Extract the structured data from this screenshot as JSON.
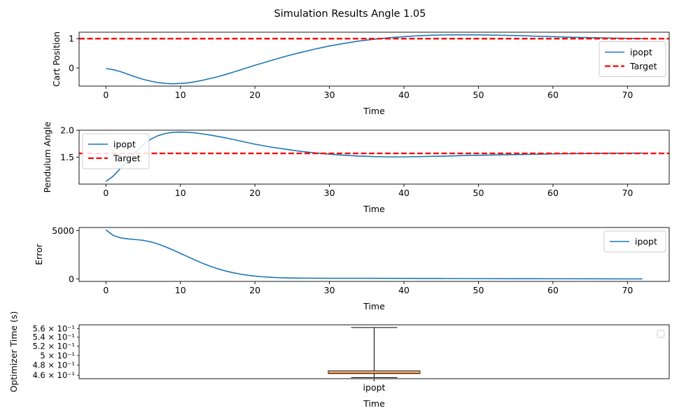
{
  "figure": {
    "title": "Simulation Results Angle 1.05"
  },
  "chart_data": [
    {
      "type": "line",
      "xlabel": "Time",
      "ylabel": "Cart Position",
      "xlim": [
        -3.6,
        75.6
      ],
      "ylim": [
        -0.62,
        1.22
      ],
      "xticks": [
        0,
        10,
        20,
        30,
        40,
        50,
        60,
        70
      ],
      "yticks": [
        0,
        1
      ],
      "grid": false,
      "legend_position": "right",
      "series": [
        {
          "name": "ipopt",
          "color": "#1f77b4",
          "style": "solid",
          "x": [
            0,
            1,
            2,
            3,
            4,
            5,
            6,
            7,
            8,
            9,
            10,
            11,
            12,
            13,
            14,
            15,
            16,
            17,
            18,
            19,
            20,
            22,
            24,
            26,
            28,
            30,
            32,
            34,
            36,
            38,
            40,
            42,
            44,
            46,
            48,
            50,
            52,
            54,
            56,
            58,
            60,
            62,
            64,
            66,
            68,
            70,
            72
          ],
          "y": [
            -0.02,
            -0.06,
            -0.13,
            -0.22,
            -0.31,
            -0.39,
            -0.45,
            -0.5,
            -0.53,
            -0.54,
            -0.53,
            -0.51,
            -0.47,
            -0.42,
            -0.36,
            -0.3,
            -0.23,
            -0.15,
            -0.07,
            0.01,
            0.09,
            0.24,
            0.39,
            0.52,
            0.64,
            0.75,
            0.84,
            0.92,
            0.98,
            1.03,
            1.07,
            1.1,
            1.12,
            1.13,
            1.13,
            1.13,
            1.12,
            1.11,
            1.1,
            1.08,
            1.07,
            1.05,
            1.04,
            1.03,
            1.02,
            1.01,
            1.0
          ]
        },
        {
          "name": "Target",
          "color": "#ff0000",
          "style": "dashed",
          "x": [
            -3.6,
            75.6
          ],
          "y": [
            1,
            1
          ]
        }
      ]
    },
    {
      "type": "line",
      "xlabel": "Time",
      "ylabel": "Pendulum Angle",
      "xlim": [
        -3.6,
        75.6
      ],
      "ylim": [
        1.0,
        2.0
      ],
      "xticks": [
        0,
        10,
        20,
        30,
        40,
        50,
        60,
        70
      ],
      "yticks": [
        1.5,
        2.0
      ],
      "ytick_labels": [
        "1.5",
        "2.0"
      ],
      "grid": false,
      "legend_position": "upper left",
      "series": [
        {
          "name": "ipopt",
          "color": "#1f77b4",
          "style": "solid",
          "x": [
            0,
            1,
            2,
            3,
            4,
            5,
            6,
            7,
            8,
            9,
            10,
            11,
            12,
            13,
            14,
            16,
            18,
            20,
            22,
            24,
            26,
            28,
            30,
            32,
            34,
            36,
            38,
            40,
            42,
            44,
            46,
            48,
            50,
            52,
            54,
            56,
            58,
            60,
            62,
            64,
            66,
            68,
            70,
            72
          ],
          "y": [
            1.05,
            1.15,
            1.3,
            1.45,
            1.6,
            1.73,
            1.83,
            1.9,
            1.94,
            1.96,
            1.965,
            1.96,
            1.95,
            1.93,
            1.91,
            1.86,
            1.8,
            1.74,
            1.69,
            1.65,
            1.61,
            1.58,
            1.555,
            1.535,
            1.52,
            1.51,
            1.505,
            1.505,
            1.51,
            1.515,
            1.52,
            1.53,
            1.535,
            1.54,
            1.545,
            1.55,
            1.555,
            1.56,
            1.565,
            1.568,
            1.57,
            1.572,
            1.574,
            1.575
          ]
        },
        {
          "name": "Target",
          "color": "#ff0000",
          "style": "dashed",
          "x": [
            -3.6,
            75.6
          ],
          "y": [
            1.57,
            1.57
          ]
        }
      ]
    },
    {
      "type": "line",
      "xlabel": "Time",
      "ylabel": "Error",
      "xlim": [
        -3.6,
        75.6
      ],
      "ylim": [
        -250,
        5330
      ],
      "xticks": [
        0,
        10,
        20,
        30,
        40,
        50,
        60,
        70
      ],
      "yticks": [
        0,
        5000
      ],
      "grid": false,
      "legend_position": "upper right",
      "series": [
        {
          "name": "ipopt",
          "color": "#1f77b4",
          "style": "solid",
          "x": [
            0,
            1,
            2,
            3,
            4,
            5,
            6,
            7,
            8,
            9,
            10,
            11,
            12,
            13,
            14,
            15,
            16,
            17,
            18,
            19,
            20,
            21,
            22,
            23,
            24,
            25,
            26,
            27,
            28,
            30,
            35,
            40,
            45,
            50,
            55,
            60,
            65,
            70,
            72
          ],
          "y": [
            5080,
            4500,
            4250,
            4150,
            4080,
            4000,
            3850,
            3620,
            3330,
            3000,
            2650,
            2300,
            1950,
            1620,
            1320,
            1060,
            840,
            660,
            510,
            390,
            300,
            230,
            180,
            140,
            115,
            100,
            90,
            85,
            80,
            75,
            68,
            60,
            50,
            40,
            30,
            22,
            15,
            10,
            8
          ]
        }
      ]
    },
    {
      "type": "box",
      "xlabel": "Time",
      "ylabel": "Optimizer Time (s)",
      "yscale": "log",
      "ylim": [
        0.4534,
        0.5689
      ],
      "yticks": [
        0.46,
        0.48,
        0.5,
        0.52,
        0.54,
        0.56
      ],
      "ytick_labels": [
        "4.6 × 10⁻¹",
        "4.8 × 10⁻¹",
        "5 × 10⁻¹",
        "5.2 × 10⁻¹",
        "5.4 × 10⁻¹",
        "5.6 × 10⁻¹"
      ],
      "categories": [
        "ipopt"
      ],
      "legend_position": "upper right",
      "box": {
        "whisker_low": 0.4555,
        "q1": 0.4633,
        "median": 0.4655,
        "q3": 0.4685,
        "whisker_high": 0.5625,
        "box_color": "#ffe0c0",
        "median_color": "#ff7f0e"
      }
    }
  ]
}
